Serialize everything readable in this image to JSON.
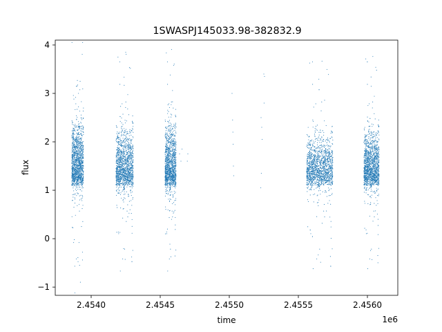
{
  "chart_data": {
    "type": "scatter",
    "title": "1SWASPJ145033.98-382832.9",
    "xlabel": "time",
    "ylabel": "flux",
    "x_offset_label": "1e6",
    "xlim": [
      2453740,
      2456220
    ],
    "ylim": [
      -1.17,
      4.1
    ],
    "x_ticks": [
      2454000,
      2454500,
      2455000,
      2455500,
      2456000
    ],
    "x_tick_labels": [
      "2.4540",
      "2.4545",
      "2.4550",
      "2.4555",
      "2.4560"
    ],
    "y_ticks": [
      -1,
      0,
      1,
      2,
      3,
      4
    ],
    "y_tick_labels": [
      "−1",
      "0",
      "1",
      "2",
      "3",
      "4"
    ],
    "grid": false,
    "marker_color": "#1f77b4",
    "series": [
      {
        "name": "",
        "clusters": [
          {
            "x_range": [
              2453860,
              2453945
            ],
            "y_center": 1.7,
            "y_spread": 0.55,
            "n": 1400
          },
          {
            "x_range": [
              2454180,
              2454305
            ],
            "y_center": 1.6,
            "y_spread": 0.55,
            "n": 1500
          },
          {
            "x_range": [
              2454535,
              2454615
            ],
            "y_center": 1.65,
            "y_spread": 0.6,
            "n": 1300
          },
          {
            "x_range": [
              2455560,
              2455750
            ],
            "y_center": 1.55,
            "y_spread": 0.45,
            "n": 1700
          },
          {
            "x_range": [
              2455975,
              2456085
            ],
            "y_center": 1.6,
            "y_spread": 0.5,
            "n": 1500
          }
        ],
        "points": [
          [
            2453873,
            -0.08
          ],
          [
            2453878,
            -0.02
          ],
          [
            2453912,
            -0.08
          ],
          [
            2453916,
            -0.55
          ],
          [
            2453922,
            -0.9
          ],
          [
            2453930,
            0.25
          ],
          [
            2454250,
            3.85
          ],
          [
            2454640,
            1.75
          ],
          [
            2454650,
            1.6
          ],
          [
            2454658,
            1.85
          ],
          [
            2454696,
            1.6
          ],
          [
            2454700,
            1.75
          ],
          [
            2455020,
            3.0
          ],
          [
            2455024,
            2.45
          ],
          [
            2455026,
            2.2
          ],
          [
            2455028,
            1.95
          ],
          [
            2455030,
            1.5
          ],
          [
            2455032,
            1.3
          ],
          [
            2455230,
            2.5
          ],
          [
            2455235,
            2.3
          ],
          [
            2455238,
            2.05
          ],
          [
            2455232,
            1.35
          ],
          [
            2455228,
            1.05
          ],
          [
            2455250,
            3.4
          ],
          [
            2455252,
            2.8
          ],
          [
            2455255,
            3.35
          ]
        ]
      }
    ]
  }
}
